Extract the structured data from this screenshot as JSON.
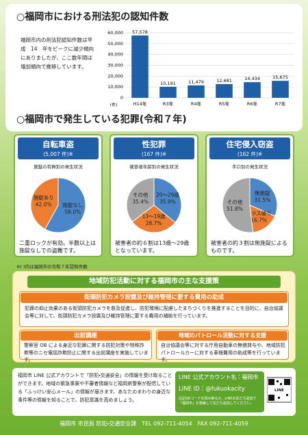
{
  "section1": {
    "title": "○福岡市における刑法犯の認知件数",
    "text": "福岡市内の刑法犯認知件数は平成　14　年をピークに減少傾向にありましたが、ここ数年間は増加傾向で推移しています。",
    "chart": {
      "type": "bar",
      "categories": [
        "H14年",
        "R3年",
        "R4年",
        "R5年",
        "R6年",
        "R7年"
      ],
      "values": [
        57578,
        10191,
        11479,
        12681,
        14434,
        15675
      ],
      "value_labels": [
        "57,578",
        "10,191",
        "11,479",
        "12,681",
        "14,434",
        "15,675"
      ],
      "color": "#1f5fa8",
      "ylim": [
        0,
        60000
      ],
      "yticks": [
        0,
        {
          "value": 10000,
          "label": "10,000"
        },
        {
          "value": 20000,
          "label": "20,000"
        },
        {
          "value": 30000,
          "label": "30,000"
        },
        {
          "value": 40000,
          "label": "40,000"
        },
        {
          "value": 50000,
          "label": "50,000"
        },
        {
          "value": 60000,
          "label": "60,000"
        }
      ],
      "y_unit": "(件)",
      "grid": true
    }
  },
  "section2": {
    "title": "○福岡市で発生している犯罪(令和７年)",
    "cards": [
      {
        "title": "自転車盗",
        "count": "(5,007 件)※",
        "chart": {
          "type": "pie",
          "title": "施錠の有無別の発生状況",
          "categories": [
            "施錠なし",
            "施錠あり"
          ],
          "values": [
            58.0,
            42.0
          ],
          "value_labels": [
            "58.0%",
            "42.0%"
          ],
          "colors": [
            "#4a86c8",
            "#ed7d31"
          ]
        },
        "note": "二重ロックが有効。半数以上は施錠なしでの盗難です。"
      },
      {
        "title": "性犯罪",
        "count": "(167 件)※",
        "chart": {
          "type": "pie",
          "title": "被害者年齢別の発生状況",
          "categories": [
            "20～29歳",
            "13～19歳",
            "その他"
          ],
          "values": [
            35.9,
            28.7,
            35.4
          ],
          "value_labels": [
            "35.9%",
            "28.7%",
            "35.4%"
          ],
          "colors": [
            "#4a86c8",
            "#ed7d31",
            "#a6a6a6"
          ]
        },
        "note": "被害者の約６割は13歳～29歳となっています。"
      },
      {
        "title": "住宅侵入窃盗",
        "count": "(162 件)※",
        "chart": {
          "type": "pie",
          "title": "手口別の発生状況",
          "categories": [
            "無施錠",
            "ガラス破り",
            "その他"
          ],
          "values": [
            31.5,
            16.7,
            51.8
          ],
          "value_labels": [
            "31.5%",
            "16.7%",
            "51.8%"
          ],
          "colors": [
            "#4a86c8",
            "#ed7d31",
            "#a6a6a6"
          ]
        },
        "note": "被害者の約３割は無施錠によるものです。"
      }
    ],
    "footnote": "※( )内は福岡市の令和７年認知件数"
  },
  "section3": {
    "title": "地域防犯活動に対する福岡市の主な支援策",
    "camera": {
      "title": "街頭防犯カメラ設置及び維持管理に要する費用の助成",
      "text": "犯罪の抑止効果のある街頭防犯カメラを普及促進し、防犯環境に配慮したまちづくりを推進することを目的に、自治協議会等に対して、街頭防犯カメラ設置及び維持管理に要する費用の補助を行っています。"
    },
    "lecture": {
      "title": "出前講座",
      "text": "警察官 OB による身近な犯罪に関する防犯対策や特殊詐欺等のニセ電話詐欺防止に関する出前講座を実施しています。"
    },
    "patrol": {
      "title": "地域のパトロール活動に対する支援",
      "text": "自治協議会等に対する庁用自動車の無償貸与や、地域防犯パトロールカーに対する車検費用の助成等を行っています。"
    }
  },
  "footer": {
    "text": "福岡市 LINE 公式アカウントで「防犯・交通安全」の情報を受け取ることができます。地域の緊急事案や不審者情報など福岡県警察が配信している「ふっけい安心メール」の情報が届きます。あなたのまわりの身近な事件等の情報を知ることで、防犯意識を高めましょう。",
    "line_name": "LINE 公式アカウント名：福岡市",
    "line_id": "LINE ID：@fukuokacity",
    "qr_note": "右記QRコードを読み取るか、LINEの友だち追加で「福岡市」を検索して友だち追加してください。",
    "qr_label": "LINE",
    "contact": "福岡市 市民局 防犯・交通安全課　TEL 092-711-4054　FAX 092-711-4059"
  }
}
